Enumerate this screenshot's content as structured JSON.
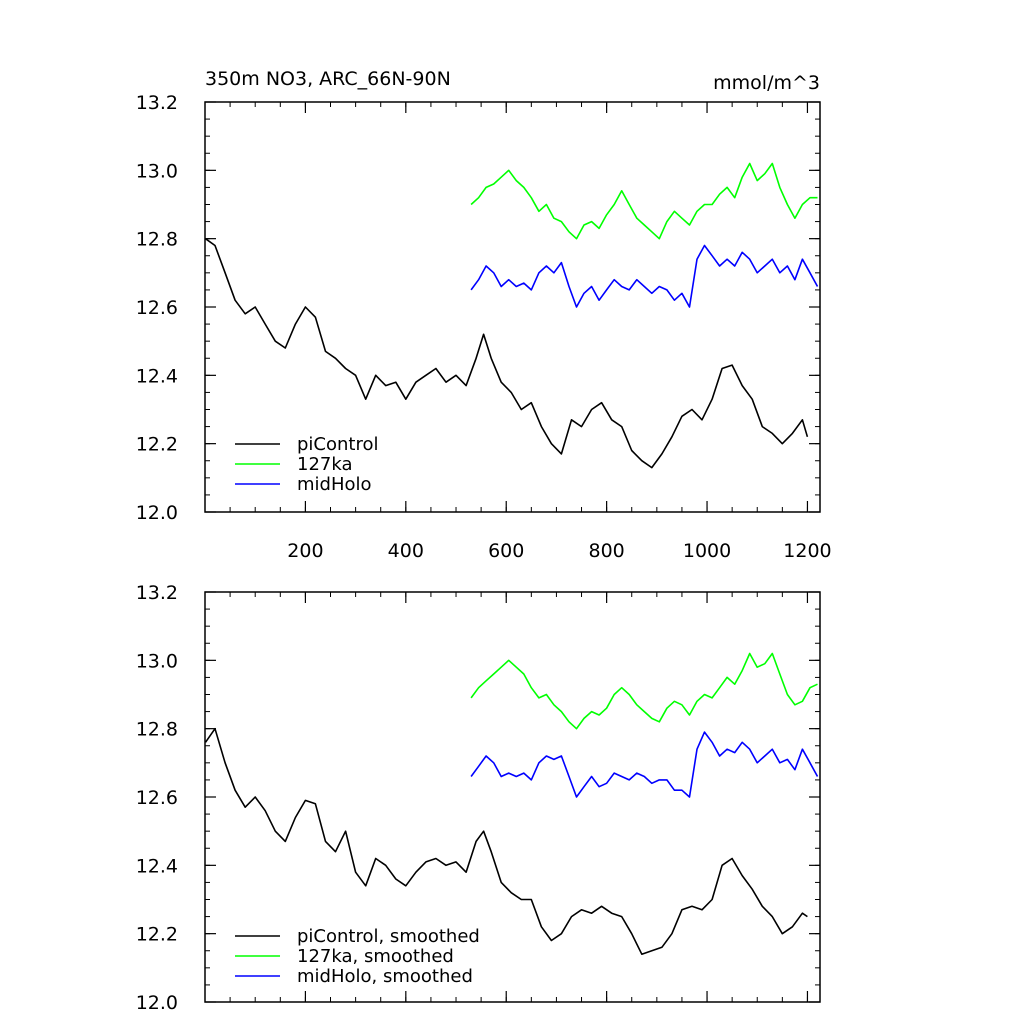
{
  "chart_data": [
    {
      "type": "line",
      "title_left": "350m NO3, ARC_66N-90N",
      "title_right": "mmol/m^3",
      "xlabel": "",
      "ylabel": "",
      "xlim": [
        0,
        1225
      ],
      "ylim": [
        12.0,
        13.2
      ],
      "x_ticks": [
        200,
        400,
        600,
        800,
        1000,
        1200
      ],
      "x_tick_labels": [
        "200",
        "400",
        "600",
        "800",
        "1000",
        "1200"
      ],
      "y_ticks": [
        12.0,
        12.2,
        12.4,
        12.6,
        12.8,
        13.0,
        13.2
      ],
      "y_tick_labels": [
        "12.0",
        "12.2",
        "12.4",
        "12.6",
        "12.8",
        "13.0",
        "13.2"
      ],
      "grid": false,
      "legend_position": "bottom-left",
      "series": [
        {
          "name": "piControl",
          "color": "#000000",
          "x": [
            1,
            20,
            40,
            60,
            80,
            100,
            120,
            140,
            160,
            180,
            200,
            220,
            240,
            260,
            280,
            300,
            320,
            340,
            360,
            380,
            400,
            420,
            440,
            460,
            480,
            500,
            520,
            540,
            555,
            570,
            590,
            610,
            630,
            650,
            670,
            690,
            710,
            730,
            750,
            770,
            790,
            810,
            830,
            850,
            870,
            890,
            910,
            930,
            950,
            970,
            990,
            1010,
            1030,
            1050,
            1070,
            1090,
            1110,
            1130,
            1150,
            1170,
            1190,
            1200
          ],
          "y": [
            12.8,
            12.78,
            12.7,
            12.62,
            12.58,
            12.6,
            12.55,
            12.5,
            12.48,
            12.55,
            12.6,
            12.57,
            12.47,
            12.45,
            12.42,
            12.4,
            12.33,
            12.4,
            12.37,
            12.38,
            12.33,
            12.38,
            12.4,
            12.42,
            12.38,
            12.4,
            12.37,
            12.45,
            12.52,
            12.45,
            12.38,
            12.35,
            12.3,
            12.32,
            12.25,
            12.2,
            12.17,
            12.27,
            12.25,
            12.3,
            12.32,
            12.27,
            12.25,
            12.18,
            12.15,
            12.13,
            12.17,
            12.22,
            12.28,
            12.3,
            12.27,
            12.33,
            12.42,
            12.43,
            12.37,
            12.33,
            12.25,
            12.23,
            12.2,
            12.23,
            12.27,
            12.22
          ]
        },
        {
          "name": "127ka",
          "color": "#00ff00",
          "x": [
            530,
            545,
            560,
            575,
            590,
            605,
            620,
            635,
            650,
            665,
            680,
            695,
            710,
            725,
            740,
            755,
            770,
            785,
            800,
            815,
            830,
            845,
            860,
            875,
            890,
            905,
            920,
            935,
            950,
            965,
            980,
            995,
            1010,
            1025,
            1040,
            1055,
            1070,
            1085,
            1100,
            1115,
            1130,
            1145,
            1160,
            1175,
            1190,
            1205,
            1220
          ],
          "y": [
            12.9,
            12.92,
            12.95,
            12.96,
            12.98,
            13.0,
            12.97,
            12.95,
            12.92,
            12.88,
            12.9,
            12.86,
            12.85,
            12.82,
            12.8,
            12.84,
            12.85,
            12.83,
            12.87,
            12.9,
            12.94,
            12.9,
            12.86,
            12.84,
            12.82,
            12.8,
            12.85,
            12.88,
            12.86,
            12.84,
            12.88,
            12.9,
            12.9,
            12.93,
            12.95,
            12.92,
            12.98,
            13.02,
            12.97,
            12.99,
            13.02,
            12.95,
            12.9,
            12.86,
            12.9,
            12.92,
            12.92
          ]
        },
        {
          "name": "midHolo",
          "color": "#0000ff",
          "x": [
            530,
            545,
            560,
            575,
            590,
            605,
            620,
            635,
            650,
            665,
            680,
            695,
            710,
            725,
            740,
            755,
            770,
            785,
            800,
            815,
            830,
            845,
            860,
            875,
            890,
            905,
            920,
            935,
            950,
            965,
            980,
            995,
            1010,
            1025,
            1040,
            1055,
            1070,
            1085,
            1100,
            1115,
            1130,
            1145,
            1160,
            1175,
            1190,
            1205,
            1220
          ],
          "y": [
            12.65,
            12.68,
            12.72,
            12.7,
            12.66,
            12.68,
            12.66,
            12.67,
            12.65,
            12.7,
            12.72,
            12.7,
            12.73,
            12.66,
            12.6,
            12.64,
            12.66,
            12.62,
            12.65,
            12.68,
            12.66,
            12.65,
            12.68,
            12.66,
            12.64,
            12.66,
            12.65,
            12.62,
            12.64,
            12.6,
            12.74,
            12.78,
            12.75,
            12.72,
            12.74,
            12.72,
            12.76,
            12.74,
            12.7,
            12.72,
            12.74,
            12.7,
            12.72,
            12.68,
            12.74,
            12.7,
            12.66
          ]
        }
      ]
    },
    {
      "type": "line",
      "xlabel": "",
      "ylabel": "",
      "xlim": [
        0,
        1225
      ],
      "ylim": [
        12.0,
        13.2
      ],
      "x_ticks": [
        200,
        400,
        600,
        800,
        1000,
        1200
      ],
      "y_ticks": [
        12.0,
        12.2,
        12.4,
        12.6,
        12.8,
        13.0,
        13.2
      ],
      "y_tick_labels": [
        "12.0",
        "12.2",
        "12.4",
        "12.6",
        "12.8",
        "13.0",
        "13.2"
      ],
      "grid": false,
      "legend_position": "bottom-left",
      "series": [
        {
          "name": "piControl, smoothed",
          "color": "#000000",
          "x": [
            1,
            20,
            40,
            60,
            80,
            100,
            120,
            140,
            160,
            180,
            200,
            220,
            240,
            260,
            280,
            300,
            320,
            340,
            360,
            380,
            400,
            420,
            440,
            460,
            480,
            500,
            520,
            540,
            555,
            570,
            590,
            610,
            630,
            650,
            670,
            690,
            710,
            730,
            750,
            770,
            790,
            810,
            830,
            850,
            870,
            890,
            910,
            930,
            950,
            970,
            990,
            1010,
            1030,
            1050,
            1070,
            1090,
            1110,
            1130,
            1150,
            1170,
            1190,
            1200
          ],
          "y": [
            12.76,
            12.8,
            12.7,
            12.62,
            12.57,
            12.6,
            12.56,
            12.5,
            12.47,
            12.54,
            12.59,
            12.58,
            12.47,
            12.44,
            12.5,
            12.38,
            12.34,
            12.42,
            12.4,
            12.36,
            12.34,
            12.38,
            12.41,
            12.42,
            12.4,
            12.41,
            12.38,
            12.47,
            12.5,
            12.44,
            12.35,
            12.32,
            12.3,
            12.3,
            12.22,
            12.18,
            12.2,
            12.25,
            12.27,
            12.26,
            12.28,
            12.26,
            12.25,
            12.2,
            12.14,
            12.15,
            12.16,
            12.2,
            12.27,
            12.28,
            12.27,
            12.3,
            12.4,
            12.42,
            12.37,
            12.33,
            12.28,
            12.25,
            12.2,
            12.22,
            12.26,
            12.25
          ]
        },
        {
          "name": "127ka, smoothed",
          "color": "#00ff00",
          "x": [
            530,
            545,
            560,
            575,
            590,
            605,
            620,
            635,
            650,
            665,
            680,
            695,
            710,
            725,
            740,
            755,
            770,
            785,
            800,
            815,
            830,
            845,
            860,
            875,
            890,
            905,
            920,
            935,
            950,
            965,
            980,
            995,
            1010,
            1025,
            1040,
            1055,
            1070,
            1085,
            1100,
            1115,
            1130,
            1145,
            1160,
            1175,
            1190,
            1205,
            1220
          ],
          "y": [
            12.89,
            12.92,
            12.94,
            12.96,
            12.98,
            13.0,
            12.98,
            12.96,
            12.92,
            12.89,
            12.9,
            12.87,
            12.85,
            12.82,
            12.8,
            12.83,
            12.85,
            12.84,
            12.86,
            12.9,
            12.92,
            12.9,
            12.87,
            12.85,
            12.83,
            12.82,
            12.86,
            12.88,
            12.87,
            12.84,
            12.88,
            12.9,
            12.89,
            12.92,
            12.95,
            12.93,
            12.97,
            13.02,
            12.98,
            12.99,
            13.02,
            12.96,
            12.9,
            12.87,
            12.88,
            12.92,
            12.93
          ]
        },
        {
          "name": "midHolo, smoothed",
          "color": "#0000ff",
          "x": [
            530,
            545,
            560,
            575,
            590,
            605,
            620,
            635,
            650,
            665,
            680,
            695,
            710,
            725,
            740,
            755,
            770,
            785,
            800,
            815,
            830,
            845,
            860,
            875,
            890,
            905,
            920,
            935,
            950,
            965,
            980,
            995,
            1010,
            1025,
            1040,
            1055,
            1070,
            1085,
            1100,
            1115,
            1130,
            1145,
            1160,
            1175,
            1190,
            1205,
            1220
          ],
          "y": [
            12.66,
            12.69,
            12.72,
            12.7,
            12.66,
            12.67,
            12.66,
            12.67,
            12.65,
            12.7,
            12.72,
            12.71,
            12.72,
            12.66,
            12.6,
            12.63,
            12.66,
            12.63,
            12.64,
            12.67,
            12.66,
            12.65,
            12.67,
            12.66,
            12.64,
            12.65,
            12.65,
            12.62,
            12.62,
            12.6,
            12.74,
            12.79,
            12.76,
            12.72,
            12.74,
            12.73,
            12.76,
            12.74,
            12.7,
            12.72,
            12.74,
            12.7,
            12.71,
            12.68,
            12.74,
            12.7,
            12.66
          ]
        }
      ]
    }
  ]
}
